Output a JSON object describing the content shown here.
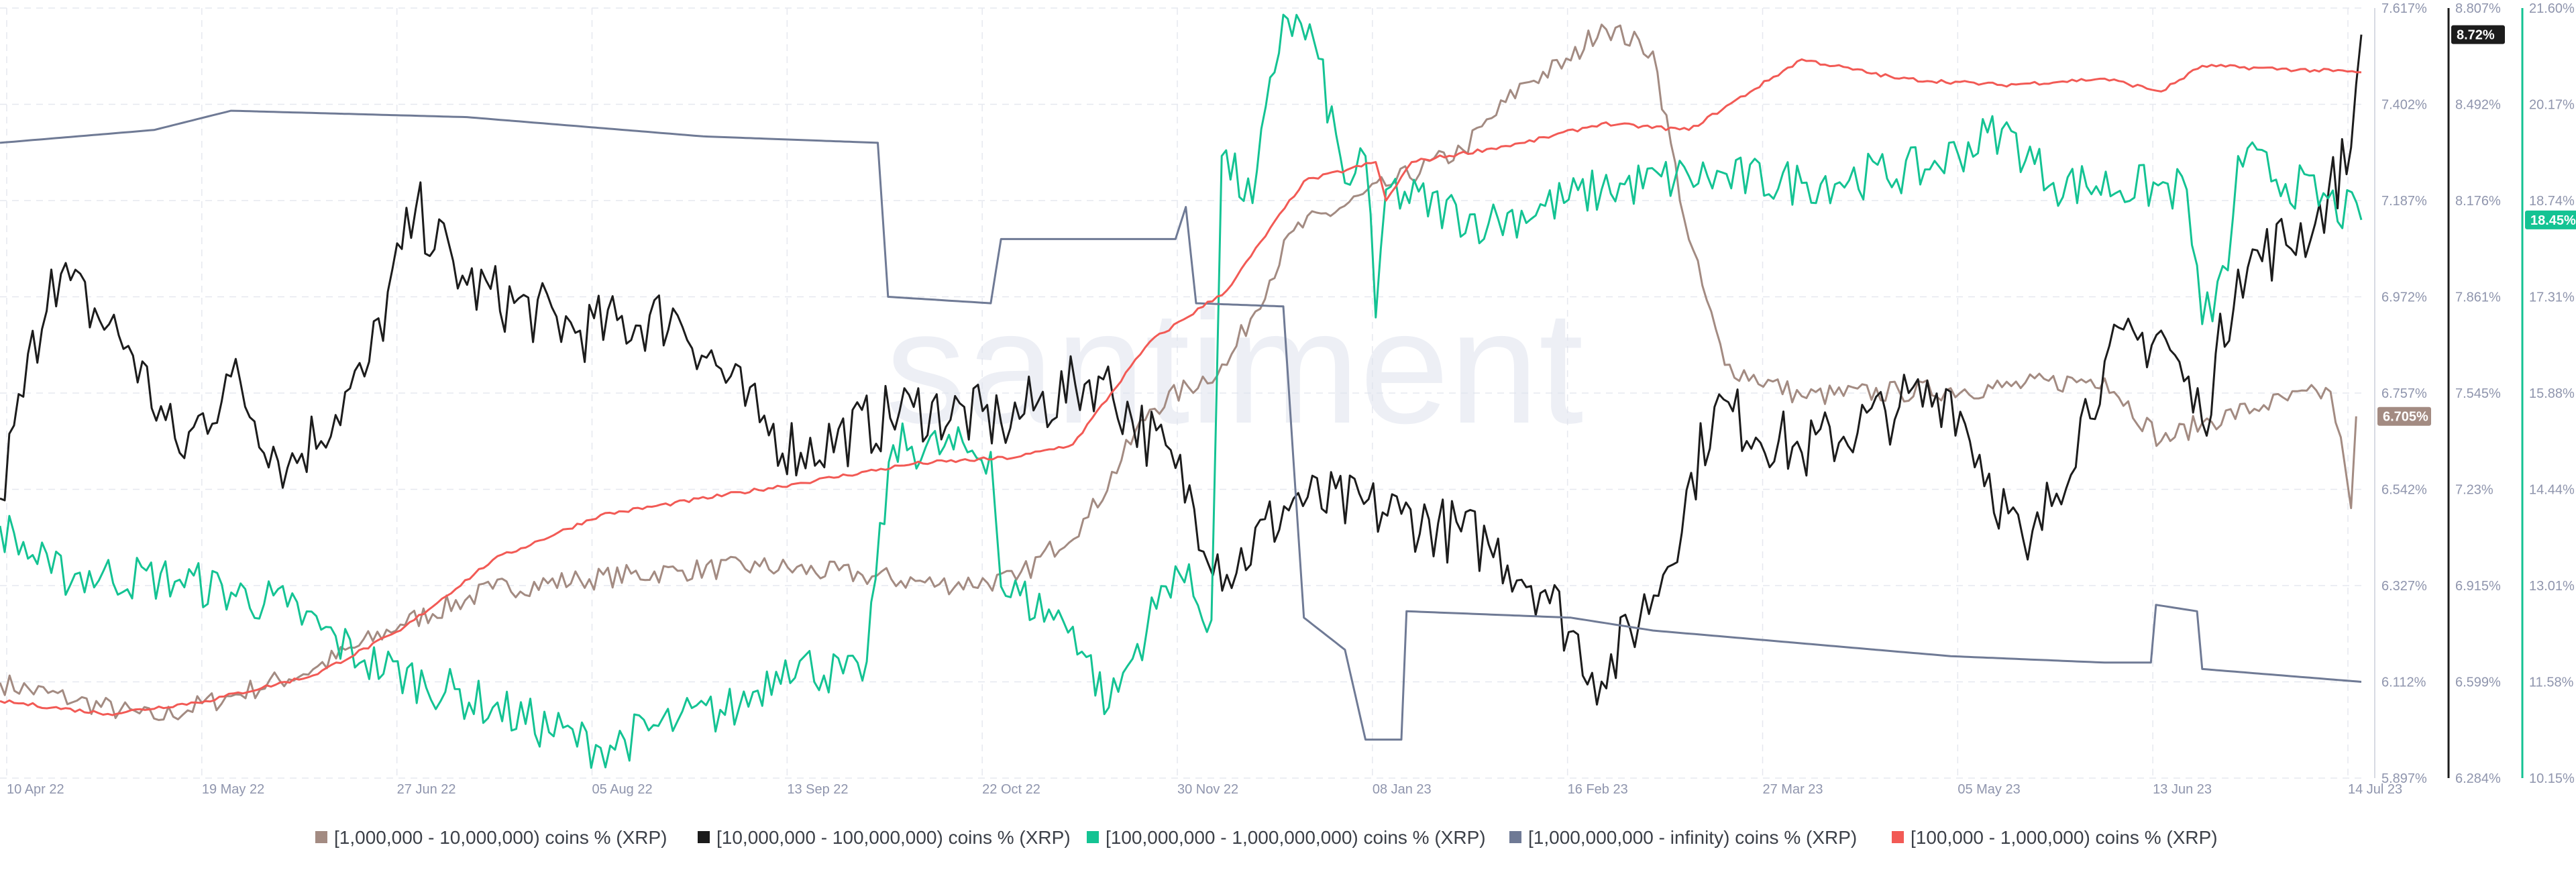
{
  "watermark": "santiment",
  "chart_data": {
    "type": "line",
    "x_ticks": [
      "10 Apr 22",
      "19 May 22",
      "27 Jun 22",
      "05 Aug 22",
      "13 Sep 22",
      "22 Oct 22",
      "30 Nov 22",
      "08 Jan 23",
      "16 Feb 23",
      "27 Mar 23",
      "05 May 23",
      "13 Jun 23",
      "14 Jul 23"
    ],
    "x_range": [
      "2022-04-10",
      "2023-07-14"
    ],
    "axes": [
      {
        "id": "axis1",
        "series": "[1,000,000 - 10,000,000) coins % (XRP)",
        "range": [
          5.897,
          7.617
        ],
        "ticks": [
          "7.617%",
          "7.402%",
          "7.187%",
          "6.972%",
          "6.757%",
          "6.542%",
          "6.327%",
          "6.112%",
          "5.897%"
        ]
      },
      {
        "id": "axis2",
        "series": "[10,000,000 - 100,000,000) coins % (XRP)",
        "range": [
          6.284,
          8.807
        ],
        "ticks": [
          "8.807%",
          "8.492%",
          "8.176%",
          "7.861%",
          "7.545%",
          "7.23%",
          "6.915%",
          "6.599%",
          "6.284%"
        ]
      },
      {
        "id": "axis3",
        "series": "[100,000,000 - 1,000,000,000) coins % (XRP)",
        "range": [
          10.15,
          21.6
        ],
        "ticks": [
          "21.60%",
          "20.17%",
          "18.74%",
          "17.31%",
          "15.88%",
          "14.44%",
          "13.01%",
          "11.58%",
          "10.15%"
        ]
      }
    ],
    "current_badges": [
      {
        "text": "8.72%",
        "series": "[10,000,000 - 100,000,000) coins % (XRP)",
        "value": 8.72,
        "color": "#1c1c1c"
      },
      {
        "text": "18.45%",
        "series": "[100,000,000 - 1,000,000,000) coins % (XRP)",
        "value": 18.45,
        "color": "#14c393"
      },
      {
        "text": "6.705%",
        "series": "[1,000,000 - 10,000,000) coins % (XRP)",
        "value": 6.705,
        "color": "#a38b82"
      }
    ],
    "series": [
      {
        "name": "[1,000,000 - 10,000,000) coins % (XRP)",
        "color": "#a38b82",
        "axis": "axis1",
        "noise": 0.025,
        "points": [
          [
            "2022-04-10",
            6.11
          ],
          [
            "2022-04-25",
            6.07
          ],
          [
            "2022-05-10",
            6.03
          ],
          [
            "2022-05-25",
            6.08
          ],
          [
            "2022-06-10",
            6.14
          ],
          [
            "2022-06-27",
            6.24
          ],
          [
            "2022-07-15",
            6.32
          ],
          [
            "2022-08-01",
            6.34
          ],
          [
            "2022-08-20",
            6.36
          ],
          [
            "2022-09-05",
            6.37
          ],
          [
            "2022-09-25",
            6.35
          ],
          [
            "2022-10-10",
            6.33
          ],
          [
            "2022-10-25",
            6.34
          ],
          [
            "2022-11-08",
            6.48
          ],
          [
            "2022-11-20",
            6.72
          ],
          [
            "2022-12-05",
            6.82
          ],
          [
            "2022-12-18",
            7.12
          ],
          [
            "2023-01-05",
            7.22
          ],
          [
            "2023-01-20",
            7.3
          ],
          [
            "2023-02-01",
            7.45
          ],
          [
            "2023-02-10",
            7.5
          ],
          [
            "2023-02-16",
            7.58
          ],
          [
            "2023-02-26",
            7.52
          ],
          [
            "2023-03-05",
            7.1
          ],
          [
            "2023-03-12",
            6.82
          ],
          [
            "2023-03-27",
            6.75
          ],
          [
            "2023-04-15",
            6.76
          ],
          [
            "2023-05-05",
            6.77
          ],
          [
            "2023-05-25",
            6.79
          ],
          [
            "2023-06-05",
            6.65
          ],
          [
            "2023-06-13",
            6.69
          ],
          [
            "2023-06-25",
            6.73
          ],
          [
            "2023-07-08",
            6.76
          ],
          [
            "2023-07-11",
            6.58
          ],
          [
            "2023-07-12",
            6.5
          ],
          [
            "2023-07-13",
            6.705
          ]
        ]
      },
      {
        "name": "[10,000,000 - 100,000,000) coins % (XRP)",
        "color": "#1c1c1c",
        "axis": "axis2",
        "noise": 0.11,
        "points": [
          [
            "2022-04-10",
            7.2
          ],
          [
            "2022-04-20",
            7.95
          ],
          [
            "2022-05-05",
            7.7
          ],
          [
            "2022-05-15",
            7.35
          ],
          [
            "2022-05-25",
            7.6
          ],
          [
            "2022-06-05",
            7.3
          ],
          [
            "2022-06-20",
            7.6
          ],
          [
            "2022-06-30",
            8.15
          ],
          [
            "2022-07-10",
            7.9
          ],
          [
            "2022-08-01",
            7.75
          ],
          [
            "2022-08-20",
            7.8
          ],
          [
            "2022-09-05",
            7.45
          ],
          [
            "2022-09-13",
            7.35
          ],
          [
            "2022-10-05",
            7.5
          ],
          [
            "2022-10-22",
            7.45
          ],
          [
            "2022-11-10",
            7.6
          ],
          [
            "2022-11-25",
            7.3
          ],
          [
            "2022-12-05",
            6.95
          ],
          [
            "2022-12-18",
            7.2
          ],
          [
            "2023-01-08",
            7.15
          ],
          [
            "2023-01-25",
            7.05
          ],
          [
            "2023-02-05",
            6.9
          ],
          [
            "2023-02-16",
            6.6
          ],
          [
            "2023-02-28",
            6.95
          ],
          [
            "2023-03-10",
            7.5
          ],
          [
            "2023-03-27",
            7.35
          ],
          [
            "2023-04-15",
            7.5
          ],
          [
            "2023-04-25",
            7.55
          ],
          [
            "2023-05-10",
            7.0
          ],
          [
            "2023-05-25",
            7.65
          ],
          [
            "2023-06-05",
            7.75
          ],
          [
            "2023-06-13",
            7.45
          ],
          [
            "2023-06-20",
            7.95
          ],
          [
            "2023-07-05",
            8.1
          ],
          [
            "2023-07-12",
            8.35
          ],
          [
            "2023-07-14",
            8.72
          ]
        ]
      },
      {
        "name": "[100,000,000 - 1,000,000,000) coins % (XRP)",
        "color": "#14c393",
        "axis": "axis3",
        "noise": 0.35,
        "points": [
          [
            "2022-04-10",
            13.9
          ],
          [
            "2022-04-20",
            13.2
          ],
          [
            "2022-05-15",
            13.1
          ],
          [
            "2022-06-05",
            12.7
          ],
          [
            "2022-06-20",
            11.9
          ],
          [
            "2022-07-15",
            11.2
          ],
          [
            "2022-08-05",
            10.6
          ],
          [
            "2022-08-20",
            11.0
          ],
          [
            "2022-09-01",
            11.2
          ],
          [
            "2022-09-10",
            11.9
          ],
          [
            "2022-09-25",
            11.6
          ],
          [
            "2022-10-01",
            15.1
          ],
          [
            "2022-10-20",
            15.0
          ],
          [
            "2022-10-22",
            13.0
          ],
          [
            "2022-11-05",
            12.4
          ],
          [
            "2022-11-12",
            11.2
          ],
          [
            "2022-11-25",
            13.3
          ],
          [
            "2022-12-02",
            12.5
          ],
          [
            "2022-12-04",
            19.4
          ],
          [
            "2022-12-10",
            18.7
          ],
          [
            "2022-12-16",
            21.5
          ],
          [
            "2022-12-22",
            21.1
          ],
          [
            "2022-12-28",
            19.0
          ],
          [
            "2023-01-01",
            19.4
          ],
          [
            "2023-01-03",
            17.0
          ],
          [
            "2023-01-05",
            18.9
          ],
          [
            "2023-01-25",
            18.4
          ],
          [
            "2023-02-16",
            18.9
          ],
          [
            "2023-03-05",
            19.1
          ],
          [
            "2023-03-27",
            19.0
          ],
          [
            "2023-04-20",
            19.2
          ],
          [
            "2023-05-05",
            19.8
          ],
          [
            "2023-05-15",
            19.0
          ],
          [
            "2023-06-10",
            18.9
          ],
          [
            "2023-06-13",
            16.9
          ],
          [
            "2023-06-18",
            17.7
          ],
          [
            "2023-06-20",
            19.4
          ],
          [
            "2023-07-14",
            18.45
          ]
        ]
      },
      {
        "name": "[1,000,000,000 - infinity) coins % (XRP)",
        "color": "#6f7a95",
        "axis": "axis4",
        "noise": 0.0,
        "points": [
          [
            "2022-04-10",
            19.9
          ],
          [
            "2022-05-10",
            20.1
          ],
          [
            "2022-05-25",
            20.4
          ],
          [
            "2022-07-10",
            20.3
          ],
          [
            "2022-08-25",
            20.0
          ],
          [
            "2022-09-28",
            19.9
          ],
          [
            "2022-09-30",
            17.5
          ],
          [
            "2022-10-20",
            17.4
          ],
          [
            "2022-10-22",
            18.4
          ],
          [
            "2022-11-25",
            18.4
          ],
          [
            "2022-11-27",
            18.9
          ],
          [
            "2022-11-29",
            17.4
          ],
          [
            "2022-12-16",
            17.35
          ],
          [
            "2022-12-20",
            12.5
          ],
          [
            "2022-12-28",
            12.0
          ],
          [
            "2023-01-01",
            10.6
          ],
          [
            "2023-01-08",
            10.6
          ],
          [
            "2023-01-09",
            12.6
          ],
          [
            "2023-02-10",
            12.5
          ],
          [
            "2023-02-26",
            12.3
          ],
          [
            "2023-03-27",
            12.1
          ],
          [
            "2023-04-25",
            11.9
          ],
          [
            "2023-05-25",
            11.8
          ],
          [
            "2023-06-03",
            11.8
          ],
          [
            "2023-06-04",
            12.7
          ],
          [
            "2023-06-12",
            12.6
          ],
          [
            "2023-06-13",
            11.7
          ],
          [
            "2023-07-14",
            11.5
          ]
        ]
      },
      {
        "name": "[100,000  - 1,000,000) coins % (XRP)",
        "color": "#f25a55",
        "axis": "axis4",
        "noise": 0.03,
        "points": [
          [
            "2022-04-10",
            11.2
          ],
          [
            "2022-05-01",
            11.0
          ],
          [
            "2022-05-20",
            11.2
          ],
          [
            "2022-06-10",
            11.6
          ],
          [
            "2022-06-27",
            12.3
          ],
          [
            "2022-07-15",
            13.4
          ],
          [
            "2022-08-05",
            14.1
          ],
          [
            "2022-09-13",
            14.6
          ],
          [
            "2022-10-05",
            14.9
          ],
          [
            "2022-10-25",
            15.0
          ],
          [
            "2022-11-05",
            15.2
          ],
          [
            "2022-11-20",
            16.8
          ],
          [
            "2022-12-05",
            17.6
          ],
          [
            "2022-12-20",
            19.3
          ],
          [
            "2023-01-03",
            19.6
          ],
          [
            "2023-01-05",
            19.0
          ],
          [
            "2023-01-10",
            19.6
          ],
          [
            "2023-02-01",
            19.9
          ],
          [
            "2023-02-16",
            20.2
          ],
          [
            "2023-03-05",
            20.1
          ],
          [
            "2023-03-27",
            21.2
          ],
          [
            "2023-04-15",
            20.9
          ],
          [
            "2023-05-05",
            20.8
          ],
          [
            "2023-05-25",
            20.9
          ],
          [
            "2023-06-05",
            20.7
          ],
          [
            "2023-06-13",
            21.1
          ],
          [
            "2023-07-14",
            21.0
          ]
        ]
      }
    ],
    "legend_position": "bottom",
    "grid": true
  },
  "legend": [
    {
      "label": "[1,000,000 - 10,000,000) coins % (XRP)",
      "color": "#a38b82"
    },
    {
      "label": "[10,000,000 - 100,000,000) coins % (XRP)",
      "color": "#1c1c1c"
    },
    {
      "label": "[100,000,000 - 1,000,000,000) coins % (XRP)",
      "color": "#14c393"
    },
    {
      "label": "[1,000,000,000 - infinity) coins % (XRP)",
      "color": "#6f7a95"
    },
    {
      "label": "[100,000  - 1,000,000) coins % (XRP)",
      "color": "#f25a55"
    }
  ]
}
